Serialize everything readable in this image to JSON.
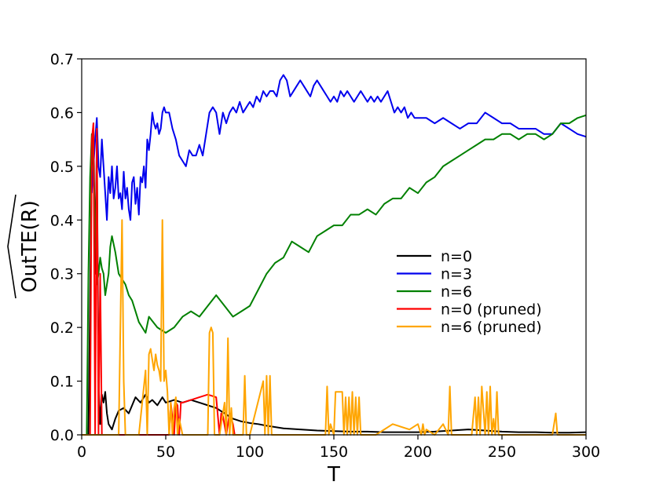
{
  "chart_data": {
    "type": "line",
    "xlabel": "T",
    "ylabel": "OutTE(R)",
    "xlim": [
      0,
      300
    ],
    "ylim": [
      0,
      0.7
    ],
    "xticks": [
      "0",
      "50",
      "100",
      "150",
      "200",
      "250",
      "300"
    ],
    "yticks": [
      "0.0",
      "0.1",
      "0.2",
      "0.3",
      "0.4",
      "0.5",
      "0.6",
      "0.7"
    ],
    "grid": false,
    "legend_position": "center-right",
    "series": [
      {
        "name": "n=0",
        "color": "#000000",
        "x": [
          0,
          4,
          6,
          7,
          8,
          9,
          10,
          11,
          12,
          13,
          14,
          15,
          16,
          18,
          20,
          22,
          25,
          28,
          30,
          32,
          35,
          38,
          40,
          42,
          45,
          48,
          50,
          55,
          60,
          65,
          70,
          75,
          80,
          85,
          90,
          95,
          100,
          105,
          110,
          120,
          130,
          140,
          150,
          160,
          170,
          180,
          190,
          200,
          210,
          220,
          230,
          240,
          250,
          260,
          270,
          280,
          290,
          300
        ],
        "y": [
          0.0,
          0.0,
          0.5,
          0.58,
          0.3,
          0.55,
          0.1,
          0.02,
          0.075,
          0.06,
          0.08,
          0.04,
          0.02,
          0.01,
          0.03,
          0.045,
          0.05,
          0.04,
          0.055,
          0.07,
          0.06,
          0.075,
          0.06,
          0.065,
          0.055,
          0.07,
          0.06,
          0.065,
          0.06,
          0.065,
          0.06,
          0.055,
          0.05,
          0.04,
          0.03,
          0.025,
          0.022,
          0.02,
          0.017,
          0.012,
          0.01,
          0.008,
          0.007,
          0.006,
          0.006,
          0.005,
          0.005,
          0.005,
          0.006,
          0.008,
          0.01,
          0.008,
          0.006,
          0.005,
          0.005,
          0.004,
          0.004,
          0.005
        ]
      },
      {
        "name": "n=3",
        "color": "#0000ee",
        "x": [
          6,
          7,
          8,
          9,
          10,
          11,
          12,
          13,
          14,
          15,
          16,
          17,
          18,
          19,
          20,
          21,
          22,
          23,
          24,
          25,
          26,
          27,
          28,
          29,
          30,
          31,
          32,
          33,
          34,
          35,
          36,
          37,
          38,
          39,
          40,
          41,
          42,
          43,
          44,
          45,
          46,
          47,
          48,
          49,
          50,
          52,
          54,
          56,
          58,
          60,
          62,
          64,
          66,
          68,
          70,
          72,
          74,
          76,
          78,
          80,
          82,
          84,
          86,
          88,
          90,
          92,
          94,
          96,
          98,
          100,
          102,
          104,
          106,
          108,
          110,
          112,
          114,
          116,
          118,
          120,
          122,
          124,
          126,
          128,
          130,
          132,
          134,
          136,
          138,
          140,
          142,
          144,
          146,
          148,
          150,
          152,
          154,
          156,
          158,
          160,
          162,
          164,
          166,
          168,
          170,
          172,
          174,
          176,
          178,
          180,
          182,
          184,
          186,
          188,
          190,
          192,
          194,
          196,
          198,
          200,
          205,
          210,
          215,
          220,
          225,
          230,
          235,
          240,
          245,
          250,
          255,
          260,
          265,
          270,
          275,
          280,
          285,
          290,
          295,
          300
        ],
        "y": [
          0.45,
          0.5,
          0.55,
          0.59,
          0.5,
          0.48,
          0.55,
          0.5,
          0.45,
          0.4,
          0.48,
          0.45,
          0.5,
          0.44,
          0.46,
          0.5,
          0.44,
          0.45,
          0.42,
          0.49,
          0.44,
          0.46,
          0.42,
          0.4,
          0.47,
          0.48,
          0.43,
          0.46,
          0.41,
          0.48,
          0.47,
          0.5,
          0.46,
          0.55,
          0.53,
          0.56,
          0.6,
          0.58,
          0.57,
          0.58,
          0.56,
          0.57,
          0.6,
          0.61,
          0.6,
          0.6,
          0.57,
          0.55,
          0.52,
          0.51,
          0.5,
          0.53,
          0.52,
          0.52,
          0.54,
          0.52,
          0.56,
          0.6,
          0.61,
          0.6,
          0.56,
          0.6,
          0.58,
          0.6,
          0.61,
          0.6,
          0.62,
          0.6,
          0.61,
          0.62,
          0.61,
          0.63,
          0.62,
          0.64,
          0.63,
          0.64,
          0.64,
          0.63,
          0.66,
          0.67,
          0.66,
          0.63,
          0.64,
          0.65,
          0.66,
          0.65,
          0.64,
          0.63,
          0.65,
          0.66,
          0.65,
          0.64,
          0.63,
          0.62,
          0.63,
          0.62,
          0.64,
          0.63,
          0.64,
          0.63,
          0.62,
          0.63,
          0.64,
          0.63,
          0.62,
          0.63,
          0.62,
          0.63,
          0.62,
          0.63,
          0.64,
          0.62,
          0.6,
          0.61,
          0.6,
          0.61,
          0.59,
          0.6,
          0.59,
          0.59,
          0.59,
          0.58,
          0.59,
          0.58,
          0.57,
          0.58,
          0.58,
          0.6,
          0.59,
          0.58,
          0.58,
          0.57,
          0.57,
          0.57,
          0.56,
          0.56,
          0.58,
          0.57,
          0.56,
          0.555
        ]
      },
      {
        "name": "n=6",
        "color": "#008000",
        "x": [
          3,
          4,
          5,
          6,
          7,
          8,
          9,
          10,
          11,
          12,
          13,
          14,
          15,
          16,
          17,
          18,
          20,
          22,
          24,
          26,
          28,
          30,
          32,
          34,
          36,
          38,
          40,
          45,
          50,
          55,
          60,
          65,
          70,
          75,
          80,
          85,
          90,
          95,
          100,
          105,
          110,
          115,
          120,
          125,
          130,
          135,
          140,
          145,
          150,
          155,
          160,
          165,
          170,
          175,
          180,
          185,
          190,
          195,
          200,
          205,
          210,
          215,
          220,
          225,
          230,
          235,
          240,
          245,
          250,
          255,
          260,
          265,
          270,
          275,
          280,
          285,
          290,
          295,
          300
        ],
        "y": [
          0.0,
          0.3,
          0.48,
          0.56,
          0.5,
          0.4,
          0.28,
          0.3,
          0.33,
          0.31,
          0.3,
          0.26,
          0.28,
          0.3,
          0.35,
          0.37,
          0.34,
          0.3,
          0.29,
          0.28,
          0.26,
          0.25,
          0.23,
          0.21,
          0.2,
          0.19,
          0.22,
          0.2,
          0.19,
          0.2,
          0.22,
          0.23,
          0.22,
          0.24,
          0.26,
          0.24,
          0.22,
          0.23,
          0.24,
          0.27,
          0.3,
          0.32,
          0.33,
          0.36,
          0.35,
          0.34,
          0.37,
          0.38,
          0.39,
          0.39,
          0.41,
          0.41,
          0.42,
          0.41,
          0.43,
          0.44,
          0.44,
          0.46,
          0.45,
          0.47,
          0.48,
          0.5,
          0.51,
          0.52,
          0.53,
          0.54,
          0.55,
          0.55,
          0.56,
          0.56,
          0.55,
          0.56,
          0.56,
          0.55,
          0.56,
          0.58,
          0.58,
          0.59,
          0.595
        ]
      },
      {
        "name": "n=0 (pruned)",
        "color": "#ff0000",
        "x": [
          5,
          6,
          7,
          8,
          9,
          10,
          11,
          12,
          52,
          53,
          55,
          56,
          57,
          58,
          59,
          60,
          65,
          70,
          75,
          80,
          82,
          83,
          84,
          86,
          88,
          90,
          91,
          92
        ],
        "y": [
          0.0,
          0.55,
          0.58,
          0.0,
          0.57,
          0.0,
          0.3,
          0.0,
          0.0,
          0.06,
          0.0,
          0.06,
          0.055,
          0.0,
          0.06,
          0.06,
          0.065,
          0.07,
          0.075,
          0.07,
          0.0,
          0.04,
          0.035,
          0.0,
          0.04,
          0.02,
          0.0,
          0.0
        ]
      },
      {
        "name": "n=6 (pruned)",
        "color": "#ffa500",
        "x": [
          0,
          22,
          24,
          25,
          26,
          28,
          34,
          38,
          39,
          40,
          41,
          42,
          43,
          44,
          45,
          46,
          47,
          48,
          49,
          50,
          51,
          52,
          53,
          54,
          55,
          56,
          57,
          58,
          60,
          75,
          76,
          77,
          78,
          79,
          80,
          82,
          85,
          86,
          87,
          88,
          89,
          90,
          91,
          92,
          96,
          97,
          98,
          100,
          108,
          109,
          110,
          111,
          112,
          113,
          130,
          145,
          146,
          147,
          148,
          150,
          151,
          152,
          153,
          154,
          155,
          156,
          157,
          158,
          159,
          160,
          161,
          162,
          163,
          164,
          165,
          166,
          168,
          175,
          185,
          195,
          200,
          202,
          203,
          204,
          205,
          210,
          215,
          218,
          219,
          220,
          221,
          225,
          232,
          234,
          235,
          236,
          237,
          238,
          240,
          241,
          242,
          243,
          244,
          245,
          246,
          247,
          248,
          250,
          260,
          275,
          280,
          282,
          283,
          284,
          285,
          290,
          300
        ],
        "y": [
          0.0,
          0.0,
          0.4,
          0.1,
          0.0,
          0.0,
          0.0,
          0.12,
          0.0,
          0.15,
          0.16,
          0.14,
          0.12,
          0.15,
          0.13,
          0.12,
          0.1,
          0.4,
          0.1,
          0.12,
          0.08,
          0.0,
          0.06,
          0.0,
          0.05,
          0.07,
          0.0,
          0.03,
          0.0,
          0.0,
          0.19,
          0.2,
          0.19,
          0.0,
          0.0,
          0.0,
          0.06,
          0.0,
          0.18,
          0.0,
          0.05,
          0.0,
          0.0,
          0.0,
          0.0,
          0.11,
          0.0,
          0.0,
          0.1,
          0.0,
          0.11,
          0.0,
          0.11,
          0.0,
          0.0,
          0.0,
          0.09,
          0.0,
          0.02,
          0.0,
          0.08,
          0.08,
          0.08,
          0.08,
          0.08,
          0.0,
          0.07,
          0.0,
          0.07,
          0.0,
          0.08,
          0.0,
          0.07,
          0.0,
          0.07,
          0.0,
          0.0,
          0.0,
          0.02,
          0.01,
          0.02,
          0.0,
          0.02,
          0.0,
          0.01,
          0.0,
          0.02,
          0.0,
          0.09,
          0.0,
          0.0,
          0.0,
          0.0,
          0.07,
          0.0,
          0.07,
          0.0,
          0.09,
          0.0,
          0.08,
          0.0,
          0.09,
          0.0,
          0.03,
          0.0,
          0.08,
          0.0,
          0.0,
          0.0,
          0.0,
          0.0,
          0.04,
          0.0,
          0.0,
          0.0,
          0.0,
          0.0
        ]
      }
    ]
  }
}
